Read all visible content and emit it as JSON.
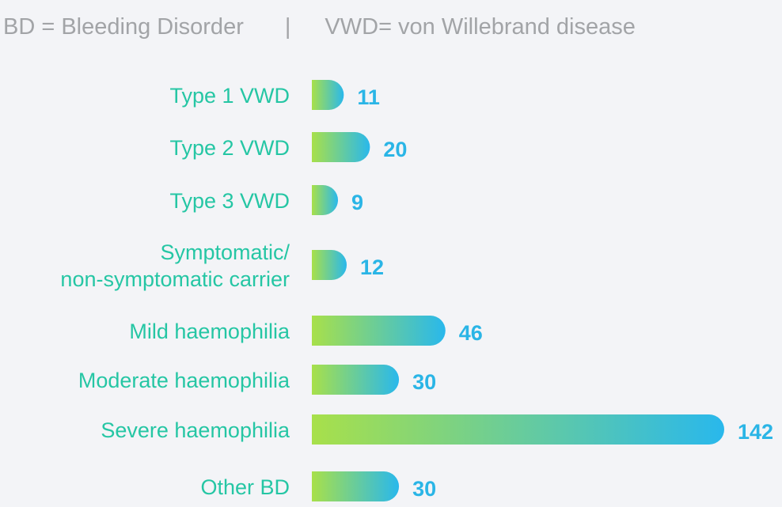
{
  "legend": {
    "bd_def": "BD = Bleeding Disorder",
    "separator": "|",
    "vwd_def": "VWD= von Willebrand disease"
  },
  "colors": {
    "gradient_start": "#a8e04a",
    "gradient_end": "#29b8ec",
    "category_label": "#25c6a4",
    "value_label": "#2ab5e6",
    "legend_text": "#a2a4a7",
    "background": "#f3f4f7"
  },
  "chart_data": {
    "type": "bar",
    "orientation": "horizontal",
    "categories": [
      [
        "Type 1 VWD"
      ],
      [
        "Type 2 VWD"
      ],
      [
        "Type 3 VWD"
      ],
      [
        "Symptomatic/",
        "non-symptomatic carrier"
      ],
      [
        "Mild haemophilia"
      ],
      [
        "Moderate haemophilia"
      ],
      [
        "Severe haemophilia"
      ],
      [
        "Other BD"
      ]
    ],
    "values": [
      11,
      20,
      9,
      12,
      46,
      30,
      142,
      30
    ]
  }
}
